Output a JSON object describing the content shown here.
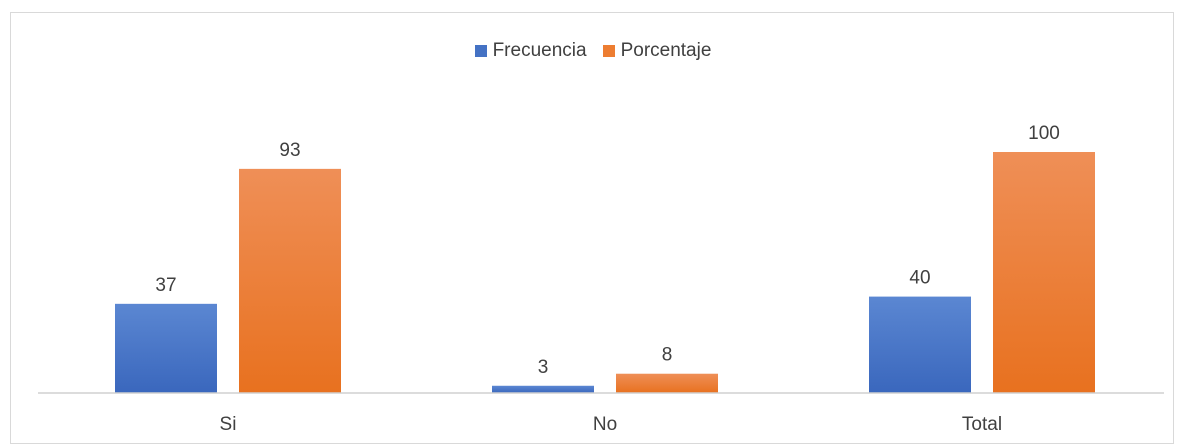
{
  "chart_data": {
    "type": "bar",
    "categories": [
      "Si",
      "No",
      "Total"
    ],
    "series": [
      {
        "name": "Frecuencia",
        "values": [
          37,
          3,
          40
        ],
        "color": "#4472c4"
      },
      {
        "name": "Porcentaje",
        "values": [
          93,
          8,
          100
        ],
        "color": "#ed7d31"
      }
    ],
    "title": "",
    "xlabel": "",
    "ylabel": "",
    "ylim": [
      0,
      100
    ],
    "legend_position": "top-center",
    "grid": false,
    "data_labels": true
  }
}
